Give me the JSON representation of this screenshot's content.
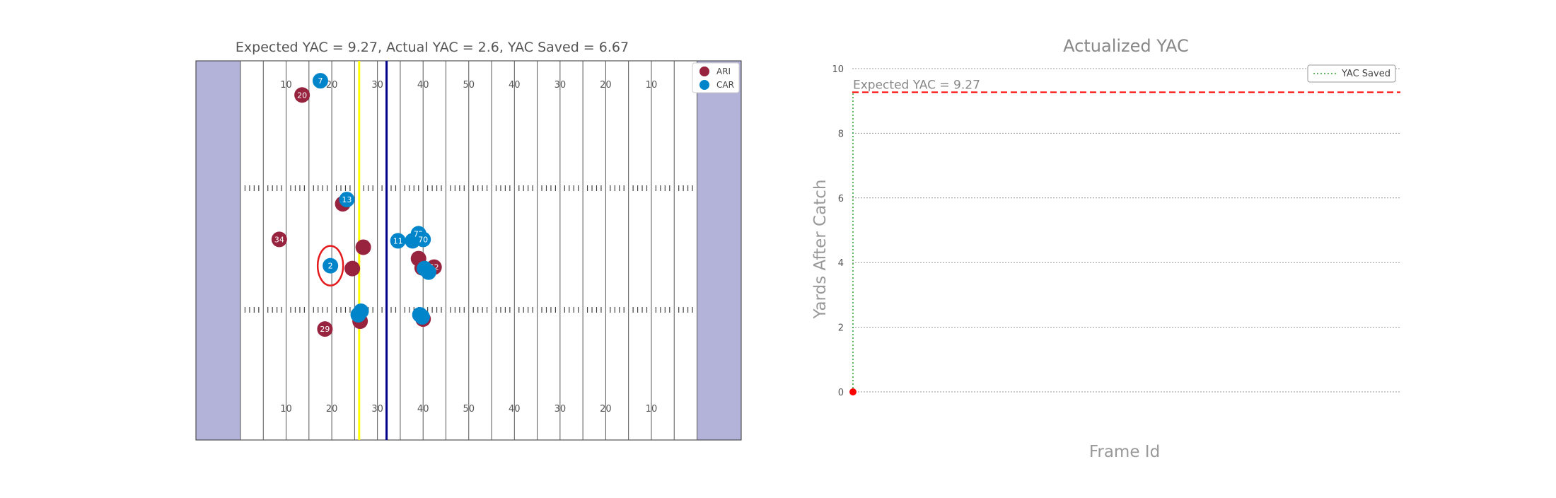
{
  "chart_data": [
    {
      "type": "scatter",
      "title": "Expected YAC = 9.27, Actual YAC = 2.6, YAC Saved = 6.67",
      "yard_labels": [
        "10",
        "20",
        "30",
        "40",
        "50",
        "40",
        "30",
        "20",
        "10"
      ],
      "colors": {
        "endzone": "#b3b3d9",
        "away": "#97233f",
        "home": "#0085ca",
        "first_down": "#ffff00",
        "los": "#00008b",
        "carrier_ring": "#e41a1c"
      },
      "legend": [
        {
          "label": "ARI",
          "color": "#97233f"
        },
        {
          "label": "CAR",
          "color": "#0085ca"
        }
      ],
      "line_of_scrimmage_x": 32,
      "first_down_x": 26,
      "ball_carrier": {
        "x": 19.7,
        "y": 24.5
      },
      "series": [
        {
          "name": "ARI",
          "points": [
            {
              "x": 13.5,
              "y": 48.5,
              "label": "20"
            },
            {
              "x": 22.4,
              "y": 33.2,
              "label": ""
            },
            {
              "x": 8.5,
              "y": 28.2,
              "label": "34"
            },
            {
              "x": 26.9,
              "y": 27.1,
              "label": ""
            },
            {
              "x": 24.5,
              "y": 24.1,
              "label": ""
            },
            {
              "x": 18.5,
              "y": 15.6,
              "label": "29"
            },
            {
              "x": 26.2,
              "y": 16.7,
              "label": ""
            },
            {
              "x": 39.0,
              "y": 25.5,
              "label": ""
            },
            {
              "x": 39.8,
              "y": 24.2,
              "label": ""
            },
            {
              "x": 42.4,
              "y": 24.3,
              "label": "52"
            },
            {
              "x": 40.0,
              "y": 17.0,
              "label": ""
            }
          ]
        },
        {
          "name": "CAR",
          "points": [
            {
              "x": 17.5,
              "y": 50.5,
              "label": "7"
            },
            {
              "x": 23.3,
              "y": 33.8,
              "label": "13"
            },
            {
              "x": 34.5,
              "y": 28.0,
              "label": "11"
            },
            {
              "x": 37.7,
              "y": 28.0,
              "label": ""
            },
            {
              "x": 39.0,
              "y": 29.0,
              "label": "72"
            },
            {
              "x": 40.0,
              "y": 28.2,
              "label": "70"
            },
            {
              "x": 40.3,
              "y": 24.1,
              "label": ""
            },
            {
              "x": 41.2,
              "y": 23.6,
              "label": ""
            },
            {
              "x": 19.7,
              "y": 24.5,
              "label": "2"
            },
            {
              "x": 25.8,
              "y": 17.6,
              "label": ""
            },
            {
              "x": 26.4,
              "y": 18.1,
              "label": ""
            },
            {
              "x": 39.3,
              "y": 17.6,
              "label": ""
            },
            {
              "x": 39.8,
              "y": 17.3,
              "label": ""
            }
          ]
        }
      ]
    },
    {
      "type": "line",
      "title": "Actualized YAC",
      "xlabel": "Frame Id",
      "ylabel": "Yards After Catch",
      "ylim": [
        0,
        10
      ],
      "y_ticks": [
        0,
        2,
        4,
        6,
        8,
        10
      ],
      "grid": true,
      "legend_position": "top-right",
      "expected_yac": 9.27,
      "expected_label": "Expected YAC = 9.27",
      "series": [
        {
          "name": "YAC Saved",
          "style": "dotted",
          "color": "#2ca02c",
          "y_from": 0,
          "y_to": 9.27
        }
      ],
      "points": [
        {
          "frame": 0,
          "y": 0,
          "color": "#ff0000"
        }
      ]
    }
  ]
}
